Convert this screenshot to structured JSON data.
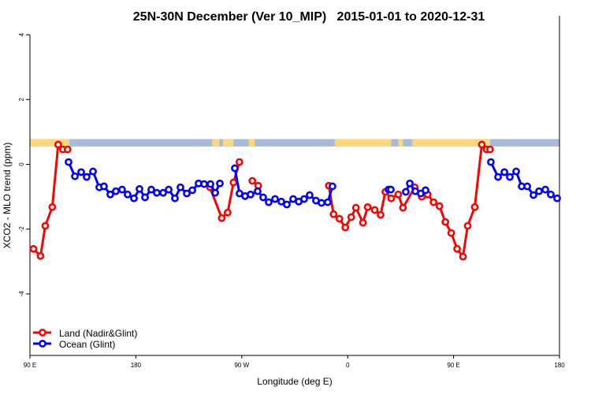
{
  "chart_data": {
    "type": "line",
    "title": "25N-30N December (Ver 10_MIP)   2015-01-01 to 2020-12-31",
    "xlabel": "Longitude (deg E)",
    "ylabel": "XCO2 - MLO trend (ppm)",
    "xlim": [
      90,
      540
    ],
    "ylim": [
      -5.9,
      4.1
    ],
    "x_ticks": [
      {
        "value": 90,
        "label": "90 E"
      },
      {
        "value": 180,
        "label": "180"
      },
      {
        "value": 270,
        "label": "90 W"
      },
      {
        "value": 360,
        "label": "0"
      },
      {
        "value": 450,
        "label": "90 E"
      },
      {
        "value": 540,
        "label": "180"
      }
    ],
    "y_ticks": [
      {
        "value": 4,
        "label": "4"
      },
      {
        "value": 2,
        "label": "2"
      },
      {
        "value": 0,
        "label": "0"
      },
      {
        "value": -2,
        "label": "-2"
      },
      {
        "value": -4,
        "label": "-4"
      }
    ],
    "legend_position": "bottom-left",
    "land_mask": {
      "ppm_range": [
        0.55,
        0.78
      ],
      "land_color": "#FDD87A",
      "ocean_color": "#A7BCDB",
      "land_lon_ranges": [
        [
          90,
          123.5
        ],
        [
          245,
          251
        ],
        [
          254,
          263
        ],
        [
          276,
          281
        ],
        [
          349,
          397
        ],
        [
          403,
          407
        ],
        [
          415,
          481
        ]
      ]
    },
    "series": [
      {
        "name": "Land (Nadir&Glint)",
        "color": "#FF0000",
        "points": [
          [
            93,
            -2.61
          ],
          [
            99,
            -2.83
          ],
          [
            103,
            -1.9
          ],
          [
            109,
            -1.32
          ],
          [
            114,
            0.61
          ],
          [
            118,
            0.46
          ],
          [
            122,
            0.46
          ],
          null,
          [
            243,
            -0.71
          ],
          [
            253,
            -1.66
          ],
          [
            258,
            -1.49
          ],
          [
            263,
            -0.56
          ],
          [
            268,
            0.07
          ],
          null,
          [
            279,
            -0.51
          ],
          [
            284,
            -0.66
          ],
          null,
          [
            344,
            -0.66
          ],
          [
            348,
            -1.54
          ],
          [
            353,
            -1.68
          ],
          [
            358,
            -1.95
          ],
          [
            363,
            -1.63
          ],
          [
            367,
            -1.34
          ],
          [
            373,
            -1.8
          ],
          [
            377,
            -1.32
          ],
          [
            383,
            -1.41
          ],
          [
            388,
            -1.56
          ],
          [
            392,
            -0.85
          ],
          [
            397,
            -1.05
          ],
          [
            403,
            -0.93
          ],
          [
            407,
            -1.34
          ],
          [
            417,
            -0.71
          ],
          [
            423,
            -1.0
          ],
          [
            428,
            -0.93
          ],
          [
            433,
            -1.17
          ],
          [
            438,
            -1.29
          ],
          [
            443,
            -1.78
          ],
          [
            448,
            -2.12
          ],
          [
            453,
            -2.61
          ],
          [
            458,
            -2.85
          ],
          [
            462,
            -1.9
          ],
          [
            468,
            -1.32
          ],
          [
            474,
            0.61
          ],
          [
            478,
            0.46
          ],
          [
            481,
            0.46
          ]
        ]
      },
      {
        "name": "Ocean (Glint)",
        "color": "#0000FF",
        "points": [
          [
            122.8,
            0.07
          ],
          [
            128.2,
            -0.37
          ],
          [
            133.5,
            -0.24
          ],
          [
            138.2,
            -0.39
          ],
          [
            143.6,
            -0.22
          ],
          [
            148.9,
            -0.71
          ],
          [
            152.9,
            -0.68
          ],
          [
            158.3,
            -0.93
          ],
          [
            163,
            -0.83
          ],
          [
            168.3,
            -0.78
          ],
          [
            173,
            -0.93
          ],
          [
            178.4,
            -1.05
          ],
          [
            183.1,
            -0.76
          ],
          [
            187.8,
            -1.02
          ],
          [
            193.1,
            -0.78
          ],
          [
            197.8,
            -0.88
          ],
          [
            203.2,
            -0.88
          ],
          [
            207.9,
            -0.78
          ],
          [
            213.2,
            -1.05
          ],
          [
            217.9,
            -0.71
          ],
          [
            223.3,
            -0.9
          ],
          [
            228,
            -0.8
          ],
          [
            233.3,
            -0.59
          ],
          [
            238,
            -0.61
          ],
          [
            243.4,
            -0.61
          ],
          [
            247.4,
            -0.88
          ],
          [
            251.4,
            -0.59
          ],
          null,
          [
            264.1,
            -0.12
          ],
          [
            268.1,
            -0.9
          ],
          [
            272.8,
            -0.98
          ],
          [
            277.5,
            -0.93
          ],
          [
            283.5,
            -0.83
          ],
          [
            288.2,
            -1.02
          ],
          [
            292.9,
            -1.17
          ],
          [
            298.3,
            -1.07
          ],
          [
            303.6,
            -1.15
          ],
          [
            308.3,
            -1.24
          ],
          [
            313.7,
            -1.07
          ],
          [
            318.4,
            -1.15
          ],
          [
            323,
            -1.07
          ],
          [
            327.7,
            -0.95
          ],
          [
            333.1,
            -1.12
          ],
          [
            337.8,
            -1.19
          ],
          [
            343.1,
            -1.17
          ],
          [
            347.1,
            -0.68
          ],
          null,
          [
            394.7,
            -0.78
          ],
          [
            396.7,
            -0.78
          ],
          null,
          [
            409.4,
            -0.85
          ],
          [
            412.8,
            -0.59
          ],
          [
            417.5,
            -0.83
          ],
          [
            422.1,
            -0.9
          ],
          [
            426.2,
            -0.8
          ],
          null,
          [
            481.7,
            0.07
          ],
          [
            487.8,
            -0.39
          ],
          [
            493.2,
            -0.24
          ],
          [
            497.8,
            -0.39
          ],
          [
            503.2,
            -0.22
          ],
          [
            507.9,
            -0.68
          ],
          [
            512.6,
            -0.68
          ],
          [
            517.9,
            -0.95
          ],
          [
            522.6,
            -0.83
          ],
          [
            528,
            -0.78
          ],
          [
            532.6,
            -0.93
          ],
          [
            538,
            -1.05
          ]
        ]
      }
    ]
  }
}
